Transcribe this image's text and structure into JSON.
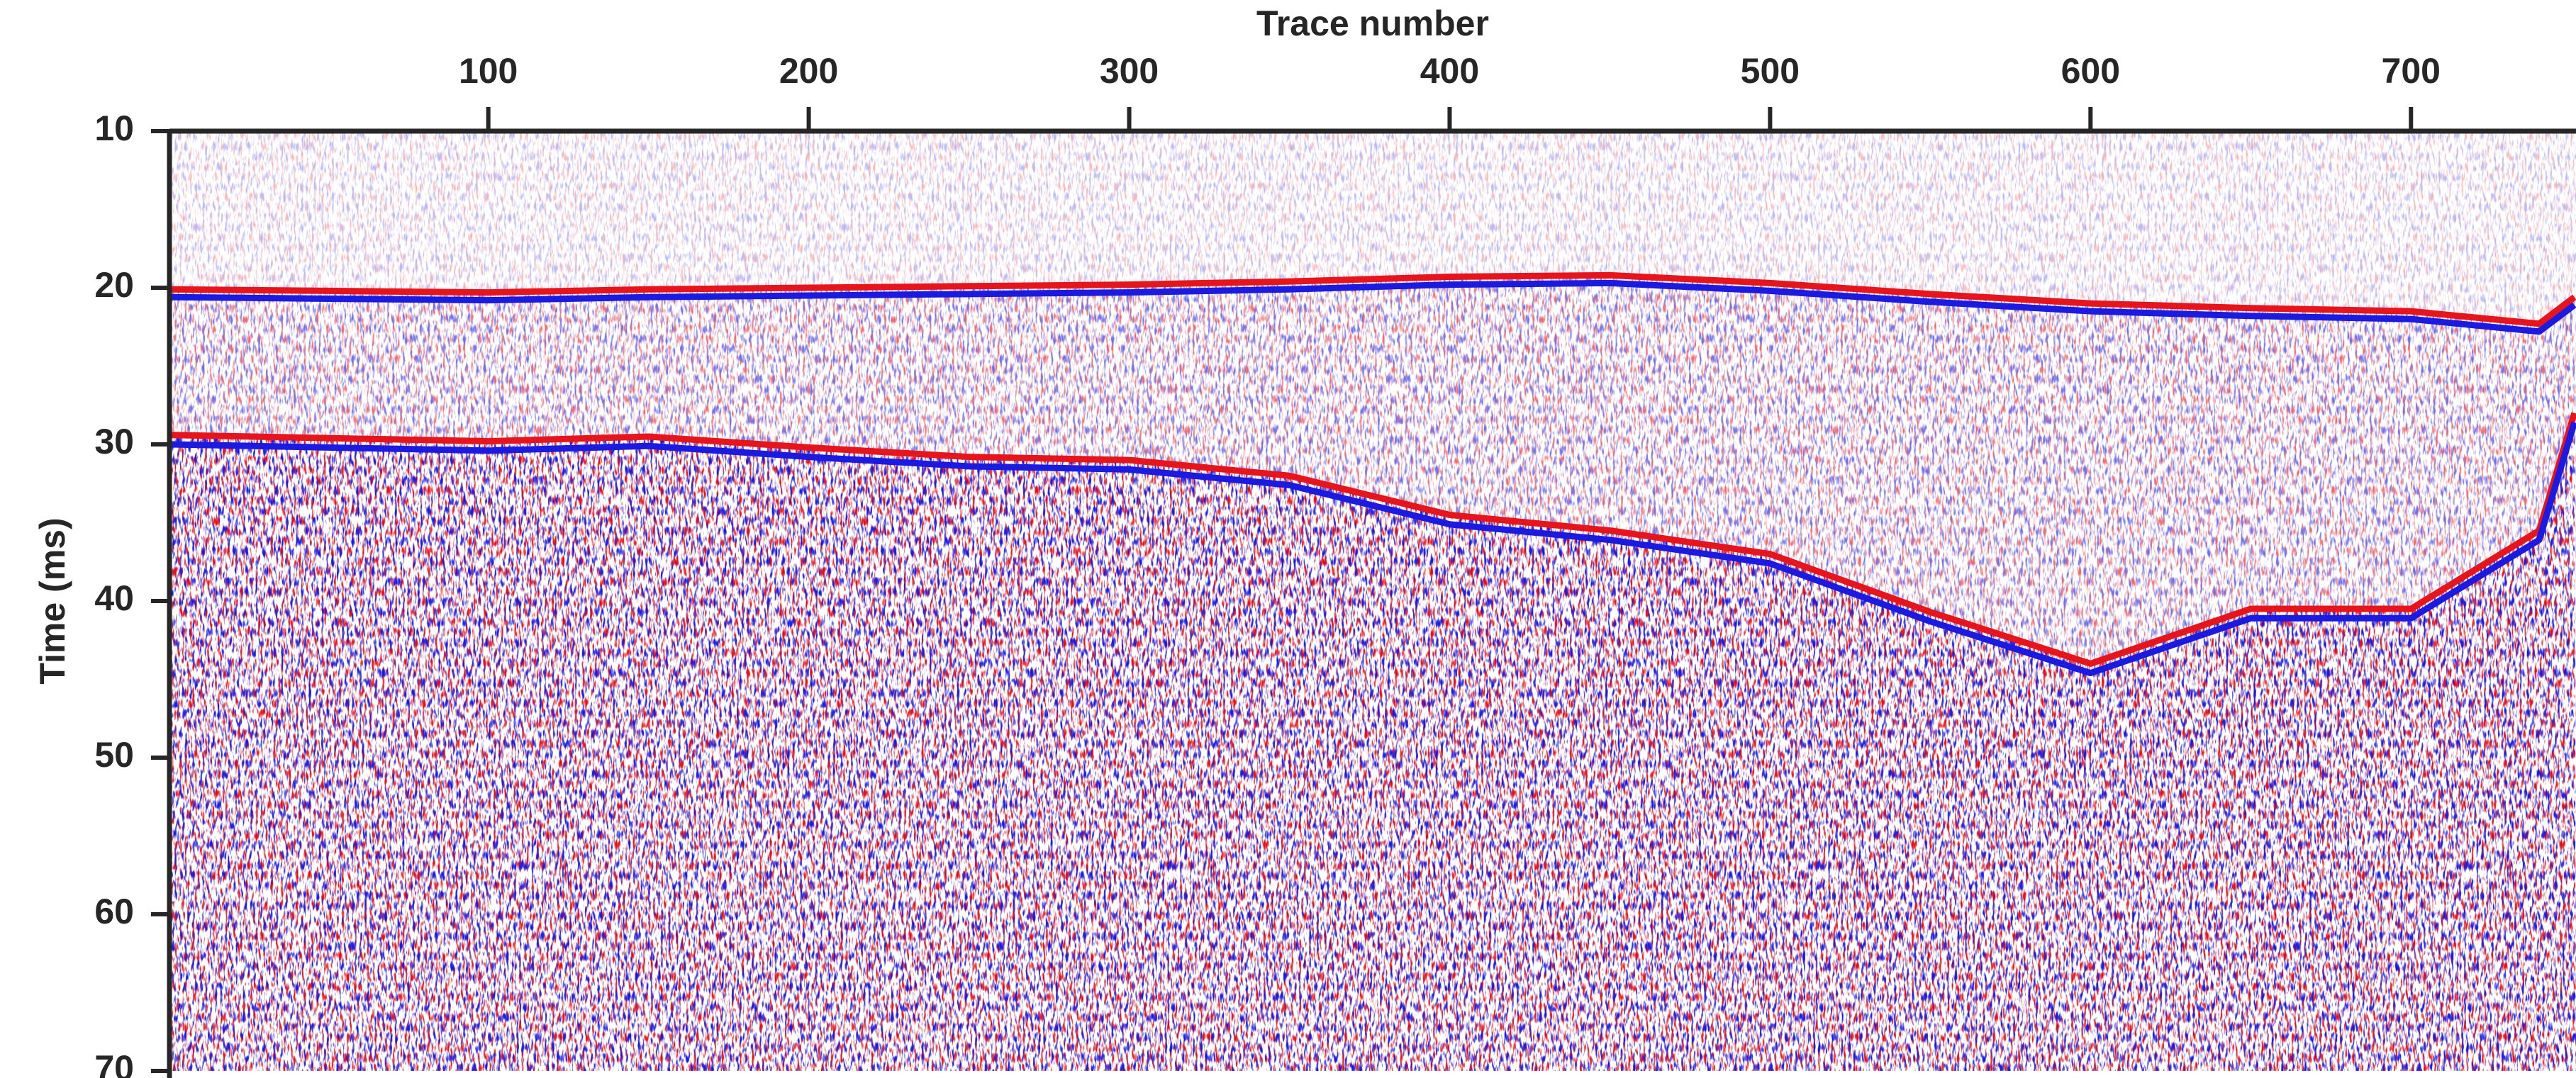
{
  "chart_data": {
    "type": "seismic",
    "xlabel": "Trace number",
    "ylabel": "Time (ms)",
    "xlim": [
      0.5,
      751.5
    ],
    "xticks": [
      100,
      200,
      300,
      400,
      500,
      600,
      700
    ],
    "ylim": [
      10,
      70
    ],
    "yticks": [
      10,
      20,
      30,
      40,
      50,
      60,
      70
    ],
    "y_reversed": true,
    "x": [
      1,
      50,
      100,
      150,
      200,
      250,
      300,
      350,
      400,
      450,
      500,
      550,
      600,
      650,
      700,
      740,
      751
    ],
    "series": [
      {
        "color": "#e8141b",
        "values": [
          20.1,
          20.2,
          20.3,
          20.1,
          20.0,
          19.9,
          19.8,
          19.6,
          19.3,
          19.2,
          19.7,
          20.4,
          21.0,
          21.3,
          21.5,
          22.3,
          20.6
        ]
      },
      {
        "color": "#1a1ae0",
        "values": [
          20.6,
          20.7,
          20.8,
          20.6,
          20.5,
          20.4,
          20.3,
          20.1,
          19.8,
          19.7,
          20.2,
          20.9,
          21.5,
          21.8,
          22.0,
          22.8,
          21.1
        ]
      },
      {
        "color": "#e8141b",
        "values": [
          29.4,
          29.6,
          29.8,
          29.5,
          30.2,
          30.8,
          31.0,
          32.0,
          34.5,
          35.5,
          37.0,
          40.7,
          44.0,
          40.5,
          40.5,
          35.5,
          28.0
        ]
      },
      {
        "color": "#1a1ae0",
        "values": [
          30.0,
          30.2,
          30.4,
          30.1,
          30.8,
          31.4,
          31.6,
          32.6,
          35.1,
          36.1,
          37.6,
          41.3,
          44.6,
          41.1,
          41.1,
          36.1,
          28.6
        ]
      }
    ]
  }
}
